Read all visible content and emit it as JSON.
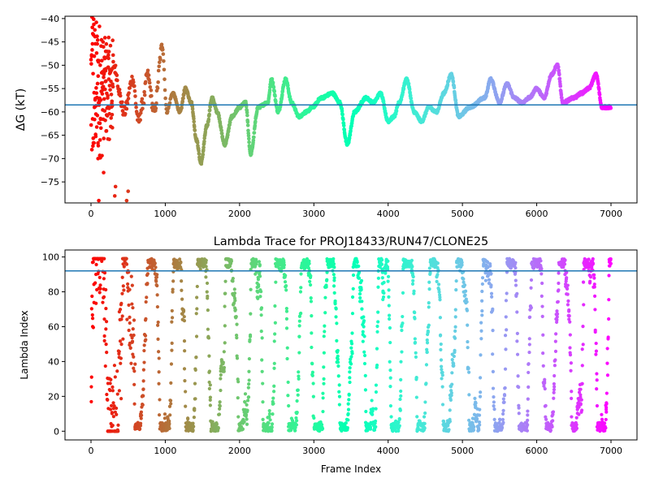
{
  "chart_data": [
    {
      "type": "scatter",
      "title": "",
      "xlabel": "",
      "ylabel": "ΔG (kT)",
      "xlim": [
        -350,
        7350
      ],
      "ylim": [
        -79.5,
        -39.5
      ],
      "xticks": [
        0,
        1000,
        2000,
        3000,
        4000,
        5000,
        6000,
        7000
      ],
      "yticks": [
        -75,
        -70,
        -65,
        -60,
        -55,
        -50,
        -45,
        -40
      ],
      "ytick_labels": [
        "−75",
        "−70",
        "−65",
        "−60",
        "−55",
        "−50",
        "−45",
        "−40"
      ],
      "hline": -58.5,
      "hline_color": "#1f77b4",
      "colormap": "rainbow (reversed, by frame index)",
      "trace_keypoints": [
        [
          300,
          -50
        ],
        [
          450,
          -60
        ],
        [
          560,
          -53
        ],
        [
          640,
          -62
        ],
        [
          700,
          -58
        ],
        [
          760,
          -52
        ],
        [
          850,
          -60
        ],
        [
          960,
          -46
        ],
        [
          1020,
          -60
        ],
        [
          1100,
          -56
        ],
        [
          1200,
          -60
        ],
        [
          1270,
          -55
        ],
        [
          1350,
          -58
        ],
        [
          1420,
          -66
        ],
        [
          1480,
          -71
        ],
        [
          1560,
          -63
        ],
        [
          1630,
          -57
        ],
        [
          1700,
          -60
        ],
        [
          1800,
          -67
        ],
        [
          1900,
          -61
        ],
        [
          2000,
          -59
        ],
        [
          2080,
          -58
        ],
        [
          2150,
          -69
        ],
        [
          2250,
          -59
        ],
        [
          2380,
          -58
        ],
        [
          2430,
          -53
        ],
        [
          2520,
          -60
        ],
        [
          2620,
          -53
        ],
        [
          2700,
          -58
        ],
        [
          2800,
          -61
        ],
        [
          2900,
          -60
        ],
        [
          2980,
          -59
        ],
        [
          3100,
          -57
        ],
        [
          3250,
          -56
        ],
        [
          3350,
          -58
        ],
        [
          3450,
          -67
        ],
        [
          3550,
          -60
        ],
        [
          3700,
          -57
        ],
        [
          3800,
          -58
        ],
        [
          3900,
          -56
        ],
        [
          4000,
          -62
        ],
        [
          4080,
          -61
        ],
        [
          4150,
          -58
        ],
        [
          4250,
          -53
        ],
        [
          4350,
          -60
        ],
        [
          4450,
          -62
        ],
        [
          4550,
          -59
        ],
        [
          4650,
          -60
        ],
        [
          4750,
          -56
        ],
        [
          4850,
          -52
        ],
        [
          4950,
          -61
        ],
        [
          5100,
          -59
        ],
        [
          5300,
          -57
        ],
        [
          5380,
          -53
        ],
        [
          5500,
          -58
        ],
        [
          5600,
          -54
        ],
        [
          5700,
          -57
        ],
        [
          5800,
          -58
        ],
        [
          5900,
          -57
        ],
        [
          6000,
          -55
        ],
        [
          6100,
          -57
        ],
        [
          6200,
          -52
        ],
        [
          6280,
          -50
        ],
        [
          6350,
          -58
        ],
        [
          6500,
          -57
        ],
        [
          6600,
          -56
        ],
        [
          6700,
          -55
        ],
        [
          6800,
          -52
        ],
        [
          6880,
          -59
        ],
        [
          7000,
          -59
        ]
      ]
    },
    {
      "type": "scatter",
      "title": "Lambda Trace for PROJ18433/RUN47/CLONE25",
      "xlabel": "Frame Index",
      "ylabel": "Lambda Index",
      "xlim": [
        -350,
        7350
      ],
      "ylim": [
        -5,
        104
      ],
      "xticks": [
        0,
        1000,
        2000,
        3000,
        4000,
        5000,
        6000,
        7000
      ],
      "yticks": [
        0,
        20,
        40,
        60,
        80,
        100
      ],
      "hline": 92,
      "hline_color": "#1f77b4",
      "colormap": "rainbow (reversed, by frame index)",
      "n_frames": 7000,
      "lambda_range": [
        0,
        99
      ]
    }
  ]
}
